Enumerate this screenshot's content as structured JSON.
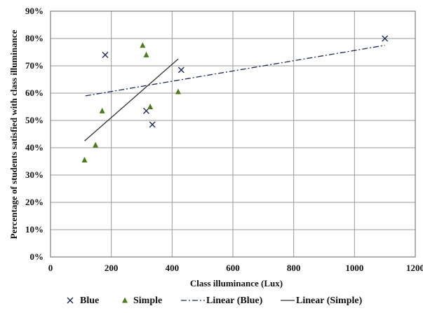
{
  "chart_data": {
    "type": "scatter",
    "title": "",
    "xlabel": "Class illuminance (Lux)",
    "ylabel": "Percentage of students satisfied with class illuminance",
    "xlim": [
      0,
      1200
    ],
    "ylim": [
      0,
      90
    ],
    "x_ticks": [
      "0",
      "200",
      "400",
      "600",
      "800",
      "1000",
      "1200"
    ],
    "y_ticks": [
      "0%",
      "10%",
      "20%",
      "30%",
      "40%",
      "50%",
      "60%",
      "70%",
      "80%",
      "90%"
    ],
    "grid": true,
    "legend_position": "bottom",
    "series": [
      {
        "name": "Blue",
        "marker": "x",
        "color": "#1f2a5a",
        "points": [
          [
            180,
            74
          ],
          [
            315,
            53.5
          ],
          [
            335,
            48.5
          ],
          [
            430,
            68.5
          ],
          [
            1100,
            80
          ]
        ]
      },
      {
        "name": "Simple",
        "marker": "triangle",
        "color": "#4a7c1c",
        "points": [
          [
            112,
            35.5
          ],
          [
            148,
            41
          ],
          [
            170,
            53.5
          ],
          [
            303,
            77.5
          ],
          [
            315,
            74
          ],
          [
            328,
            55
          ],
          [
            420,
            60.5
          ]
        ]
      }
    ],
    "trendlines": [
      {
        "name": "Linear (Blue)",
        "style": "dash-dot",
        "color": "#1f2a5a",
        "from": [
          115,
          59
        ],
        "to": [
          1100,
          77.5
        ]
      },
      {
        "name": "Linear (Simple)",
        "style": "solid",
        "color": "#333333",
        "from": [
          112,
          42.5
        ],
        "to": [
          420,
          72.5
        ]
      }
    ],
    "legend": [
      "Blue",
      "Simple",
      "Linear (Blue)",
      "Linear (Simple)"
    ]
  }
}
